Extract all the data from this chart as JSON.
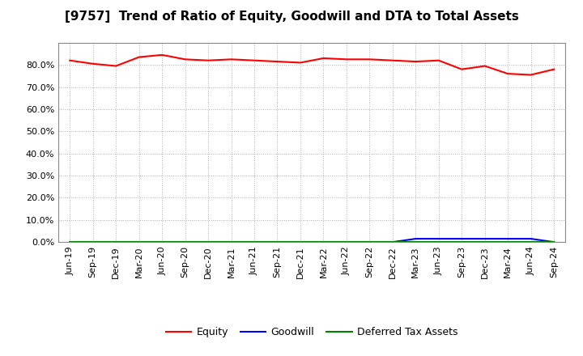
{
  "title": "[9757]  Trend of Ratio of Equity, Goodwill and DTA to Total Assets",
  "x_labels": [
    "Jun-19",
    "Sep-19",
    "Dec-19",
    "Mar-20",
    "Jun-20",
    "Sep-20",
    "Dec-20",
    "Mar-21",
    "Jun-21",
    "Sep-21",
    "Dec-21",
    "Mar-22",
    "Jun-22",
    "Sep-22",
    "Dec-22",
    "Mar-23",
    "Jun-23",
    "Sep-23",
    "Dec-23",
    "Mar-24",
    "Jun-24",
    "Sep-24"
  ],
  "equity": [
    82.0,
    80.5,
    79.5,
    83.5,
    84.5,
    82.5,
    82.0,
    82.5,
    82.0,
    81.5,
    81.0,
    83.0,
    82.5,
    82.5,
    82.0,
    81.5,
    82.0,
    78.0,
    79.5,
    76.0,
    75.5,
    78.0
  ],
  "goodwill": [
    0.0,
    0.0,
    0.0,
    0.0,
    0.0,
    0.0,
    0.0,
    0.0,
    0.0,
    0.0,
    0.0,
    0.0,
    0.0,
    0.0,
    0.0,
    1.5,
    1.5,
    1.5,
    1.5,
    1.5,
    1.5,
    0.0
  ],
  "dta": [
    0.0,
    0.0,
    0.0,
    0.0,
    0.0,
    0.0,
    0.0,
    0.0,
    0.0,
    0.0,
    0.0,
    0.0,
    0.0,
    0.0,
    0.0,
    0.0,
    0.0,
    0.0,
    0.0,
    0.0,
    0.0,
    0.0
  ],
  "equity_color": "#ff0000",
  "goodwill_color": "#0000ff",
  "dta_color": "#008000",
  "ylim": [
    0,
    90
  ],
  "yticks": [
    0,
    10,
    20,
    30,
    40,
    50,
    60,
    70,
    80
  ],
  "background_color": "#ffffff",
  "grid_color": "#b0b0b0",
  "title_fontsize": 11,
  "tick_fontsize": 8,
  "legend_fontsize": 9
}
